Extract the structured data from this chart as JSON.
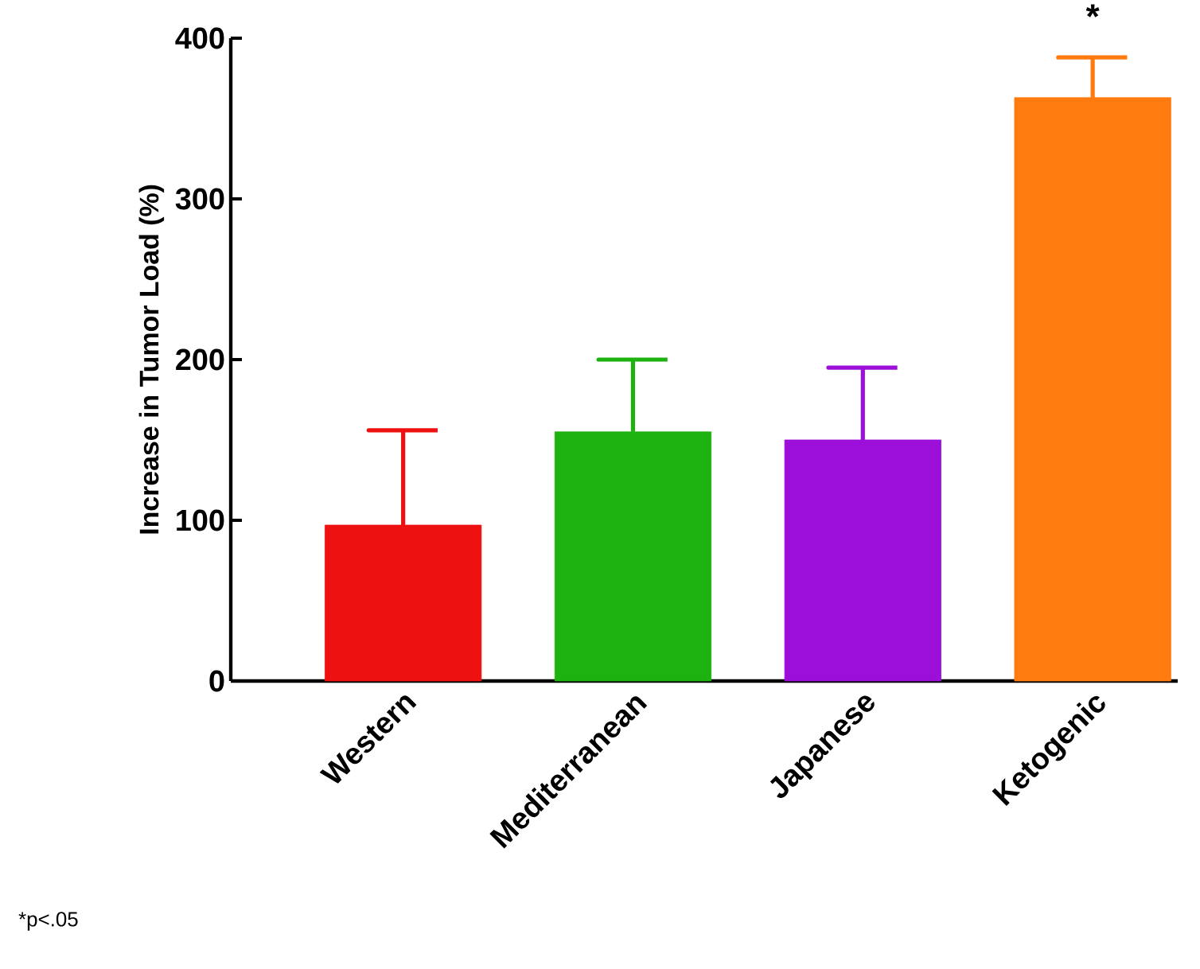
{
  "chart_data": {
    "type": "bar",
    "ylabel": "Increase in Tumor Load (%)",
    "categories": [
      "Western",
      "Mediterranean",
      "Japanese",
      "Ketogenic"
    ],
    "values": [
      97,
      155,
      150,
      363
    ],
    "errors": [
      [
        97,
        156
      ],
      [
        155,
        200
      ],
      [
        150,
        195
      ],
      [
        363,
        388
      ]
    ],
    "colors": [
      "#ee1111",
      "#1db20f",
      "#9b0fd8",
      "#ff7a0f"
    ],
    "ylim": [
      0,
      400
    ],
    "yticks": [
      0,
      100,
      200,
      300,
      400
    ],
    "grid": false,
    "annotations": [
      "*",
      "*p<.05"
    ]
  }
}
